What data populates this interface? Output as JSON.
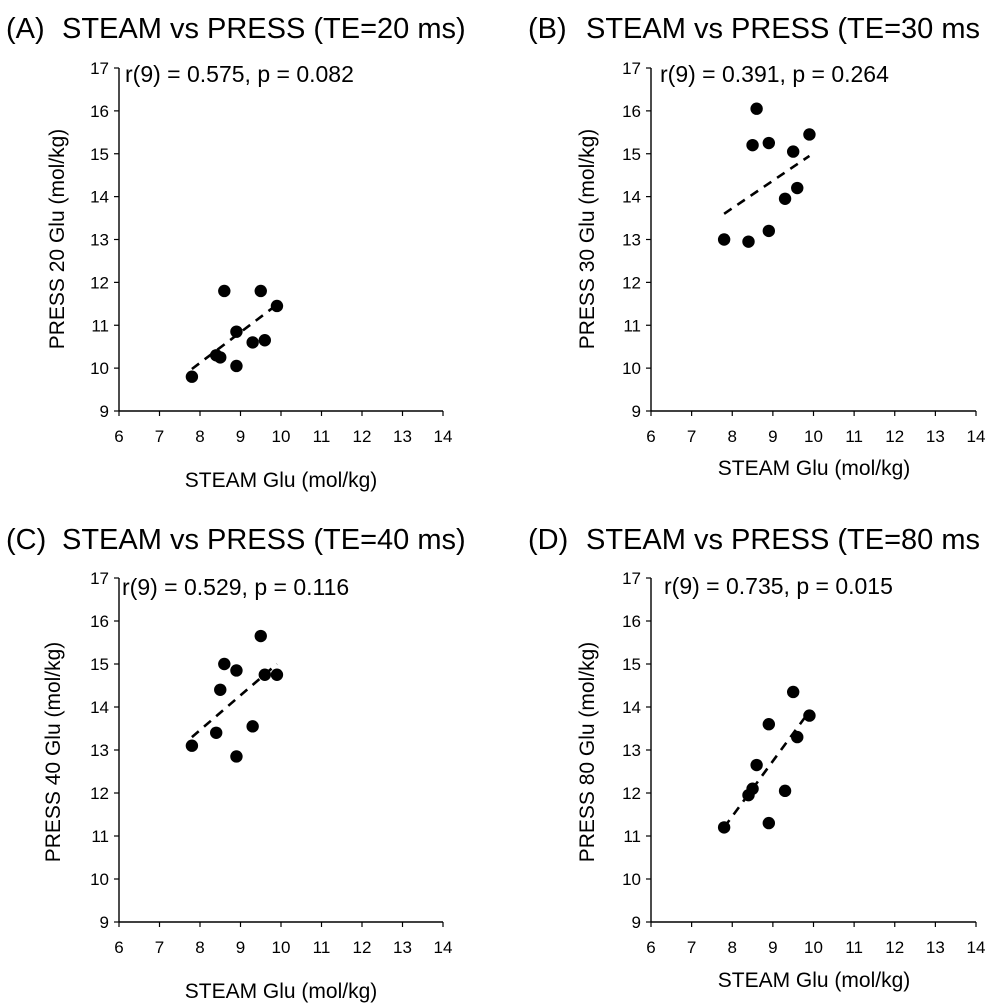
{
  "chart_data": [
    {
      "type": "scatter",
      "panel_label": "(A)",
      "title": "STEAM vs PRESS (TE=20 ms)",
      "annotation": "r(9) = 0.575, p = 0.082",
      "xlabel": "STEAM Glu (mol/kg)",
      "ylabel": "PRESS 20 Glu (mol/kg)",
      "xlim": [
        6,
        14
      ],
      "ylim": [
        9,
        17
      ],
      "xticks": [
        "6",
        "7",
        "8",
        "9",
        "10",
        "11",
        "12",
        "13",
        "14"
      ],
      "yticks": [
        "9",
        "10",
        "11",
        "12",
        "13",
        "14",
        "15",
        "16",
        "17"
      ],
      "grid": false,
      "series": [
        {
          "points": [
            {
              "x": 7.8,
              "y": 9.8
            },
            {
              "x": 8.4,
              "y": 10.3
            },
            {
              "x": 8.5,
              "y": 10.25
            },
            {
              "x": 8.6,
              "y": 11.8
            },
            {
              "x": 8.9,
              "y": 10.05
            },
            {
              "x": 8.9,
              "y": 10.85
            },
            {
              "x": 9.3,
              "y": 10.6
            },
            {
              "x": 9.5,
              "y": 11.8
            },
            {
              "x": 9.6,
              "y": 10.65
            },
            {
              "x": 9.9,
              "y": 11.45
            }
          ],
          "trendline": {
            "x": [
              7.8,
              9.9
            ],
            "y": [
              9.98,
              11.48
            ]
          }
        }
      ]
    },
    {
      "type": "scatter",
      "panel_label": "(B)",
      "title": "STEAM vs PRESS (TE=30 ms",
      "annotation": "r(9) = 0.391, p = 0.264",
      "xlabel": "STEAM Glu (mol/kg)",
      "ylabel": "PRESS 30 Glu (mol/kg)",
      "xlim": [
        6,
        14
      ],
      "ylim": [
        9,
        17
      ],
      "xticks": [
        "6",
        "7",
        "8",
        "9",
        "10",
        "11",
        "12",
        "13",
        "14"
      ],
      "yticks": [
        "9",
        "10",
        "11",
        "12",
        "13",
        "14",
        "15",
        "16",
        "17"
      ],
      "grid": false,
      "series": [
        {
          "points": [
            {
              "x": 7.8,
              "y": 13.0
            },
            {
              "x": 8.4,
              "y": 12.95
            },
            {
              "x": 8.5,
              "y": 15.2
            },
            {
              "x": 8.6,
              "y": 16.05
            },
            {
              "x": 8.9,
              "y": 13.2
            },
            {
              "x": 8.9,
              "y": 15.25
            },
            {
              "x": 9.3,
              "y": 13.95
            },
            {
              "x": 9.5,
              "y": 15.05
            },
            {
              "x": 9.6,
              "y": 14.2
            },
            {
              "x": 9.9,
              "y": 15.45
            }
          ],
          "trendline": {
            "x": [
              7.8,
              9.9
            ],
            "y": [
              13.6,
              14.95
            ]
          }
        }
      ]
    },
    {
      "type": "scatter",
      "panel_label": "(C)",
      "title": "STEAM vs PRESS (TE=40 ms)",
      "annotation": "r(9) = 0.529, p = 0.116",
      "xlabel": "STEAM Glu (mol/kg)",
      "ylabel": "PRESS 40 Glu (mol/kg)",
      "xlim": [
        6,
        14
      ],
      "ylim": [
        9,
        17
      ],
      "xticks": [
        "6",
        "7",
        "8",
        "9",
        "10",
        "11",
        "12",
        "13",
        "14"
      ],
      "yticks": [
        "9",
        "10",
        "11",
        "12",
        "13",
        "14",
        "15",
        "16",
        "17"
      ],
      "grid": false,
      "series": [
        {
          "points": [
            {
              "x": 7.8,
              "y": 13.1
            },
            {
              "x": 8.4,
              "y": 13.4
            },
            {
              "x": 8.5,
              "y": 14.4
            },
            {
              "x": 8.6,
              "y": 15.0
            },
            {
              "x": 8.9,
              "y": 12.85
            },
            {
              "x": 8.9,
              "y": 14.85
            },
            {
              "x": 9.3,
              "y": 13.55
            },
            {
              "x": 9.5,
              "y": 15.65
            },
            {
              "x": 9.6,
              "y": 14.75
            },
            {
              "x": 9.9,
              "y": 14.75
            }
          ],
          "trendline": {
            "x": [
              7.8,
              9.9
            ],
            "y": [
              13.3,
              15.0
            ]
          }
        }
      ]
    },
    {
      "type": "scatter",
      "panel_label": "(D)",
      "title": "STEAM vs PRESS (TE=80 ms",
      "annotation": "r(9) = 0.735, p = 0.015",
      "xlabel": "STEAM Glu (mol/kg)",
      "ylabel": "PRESS 80 Glu (mol/kg)",
      "xlim": [
        6,
        14
      ],
      "ylim": [
        9,
        17
      ],
      "xticks": [
        "6",
        "7",
        "8",
        "9",
        "10",
        "11",
        "12",
        "13",
        "14"
      ],
      "yticks": [
        "9",
        "10",
        "11",
        "12",
        "13",
        "14",
        "15",
        "16",
        "17"
      ],
      "grid": false,
      "series": [
        {
          "points": [
            {
              "x": 7.8,
              "y": 11.2
            },
            {
              "x": 8.4,
              "y": 11.95
            },
            {
              "x": 8.5,
              "y": 12.1
            },
            {
              "x": 8.6,
              "y": 12.65
            },
            {
              "x": 8.9,
              "y": 11.3
            },
            {
              "x": 8.9,
              "y": 13.6
            },
            {
              "x": 9.3,
              "y": 12.05
            },
            {
              "x": 9.5,
              "y": 14.35
            },
            {
              "x": 9.6,
              "y": 13.3
            },
            {
              "x": 9.9,
              "y": 13.8
            }
          ],
          "trendline": {
            "x": [
              7.8,
              9.9
            ],
            "y": [
              11.2,
              13.9
            ]
          }
        }
      ]
    }
  ]
}
